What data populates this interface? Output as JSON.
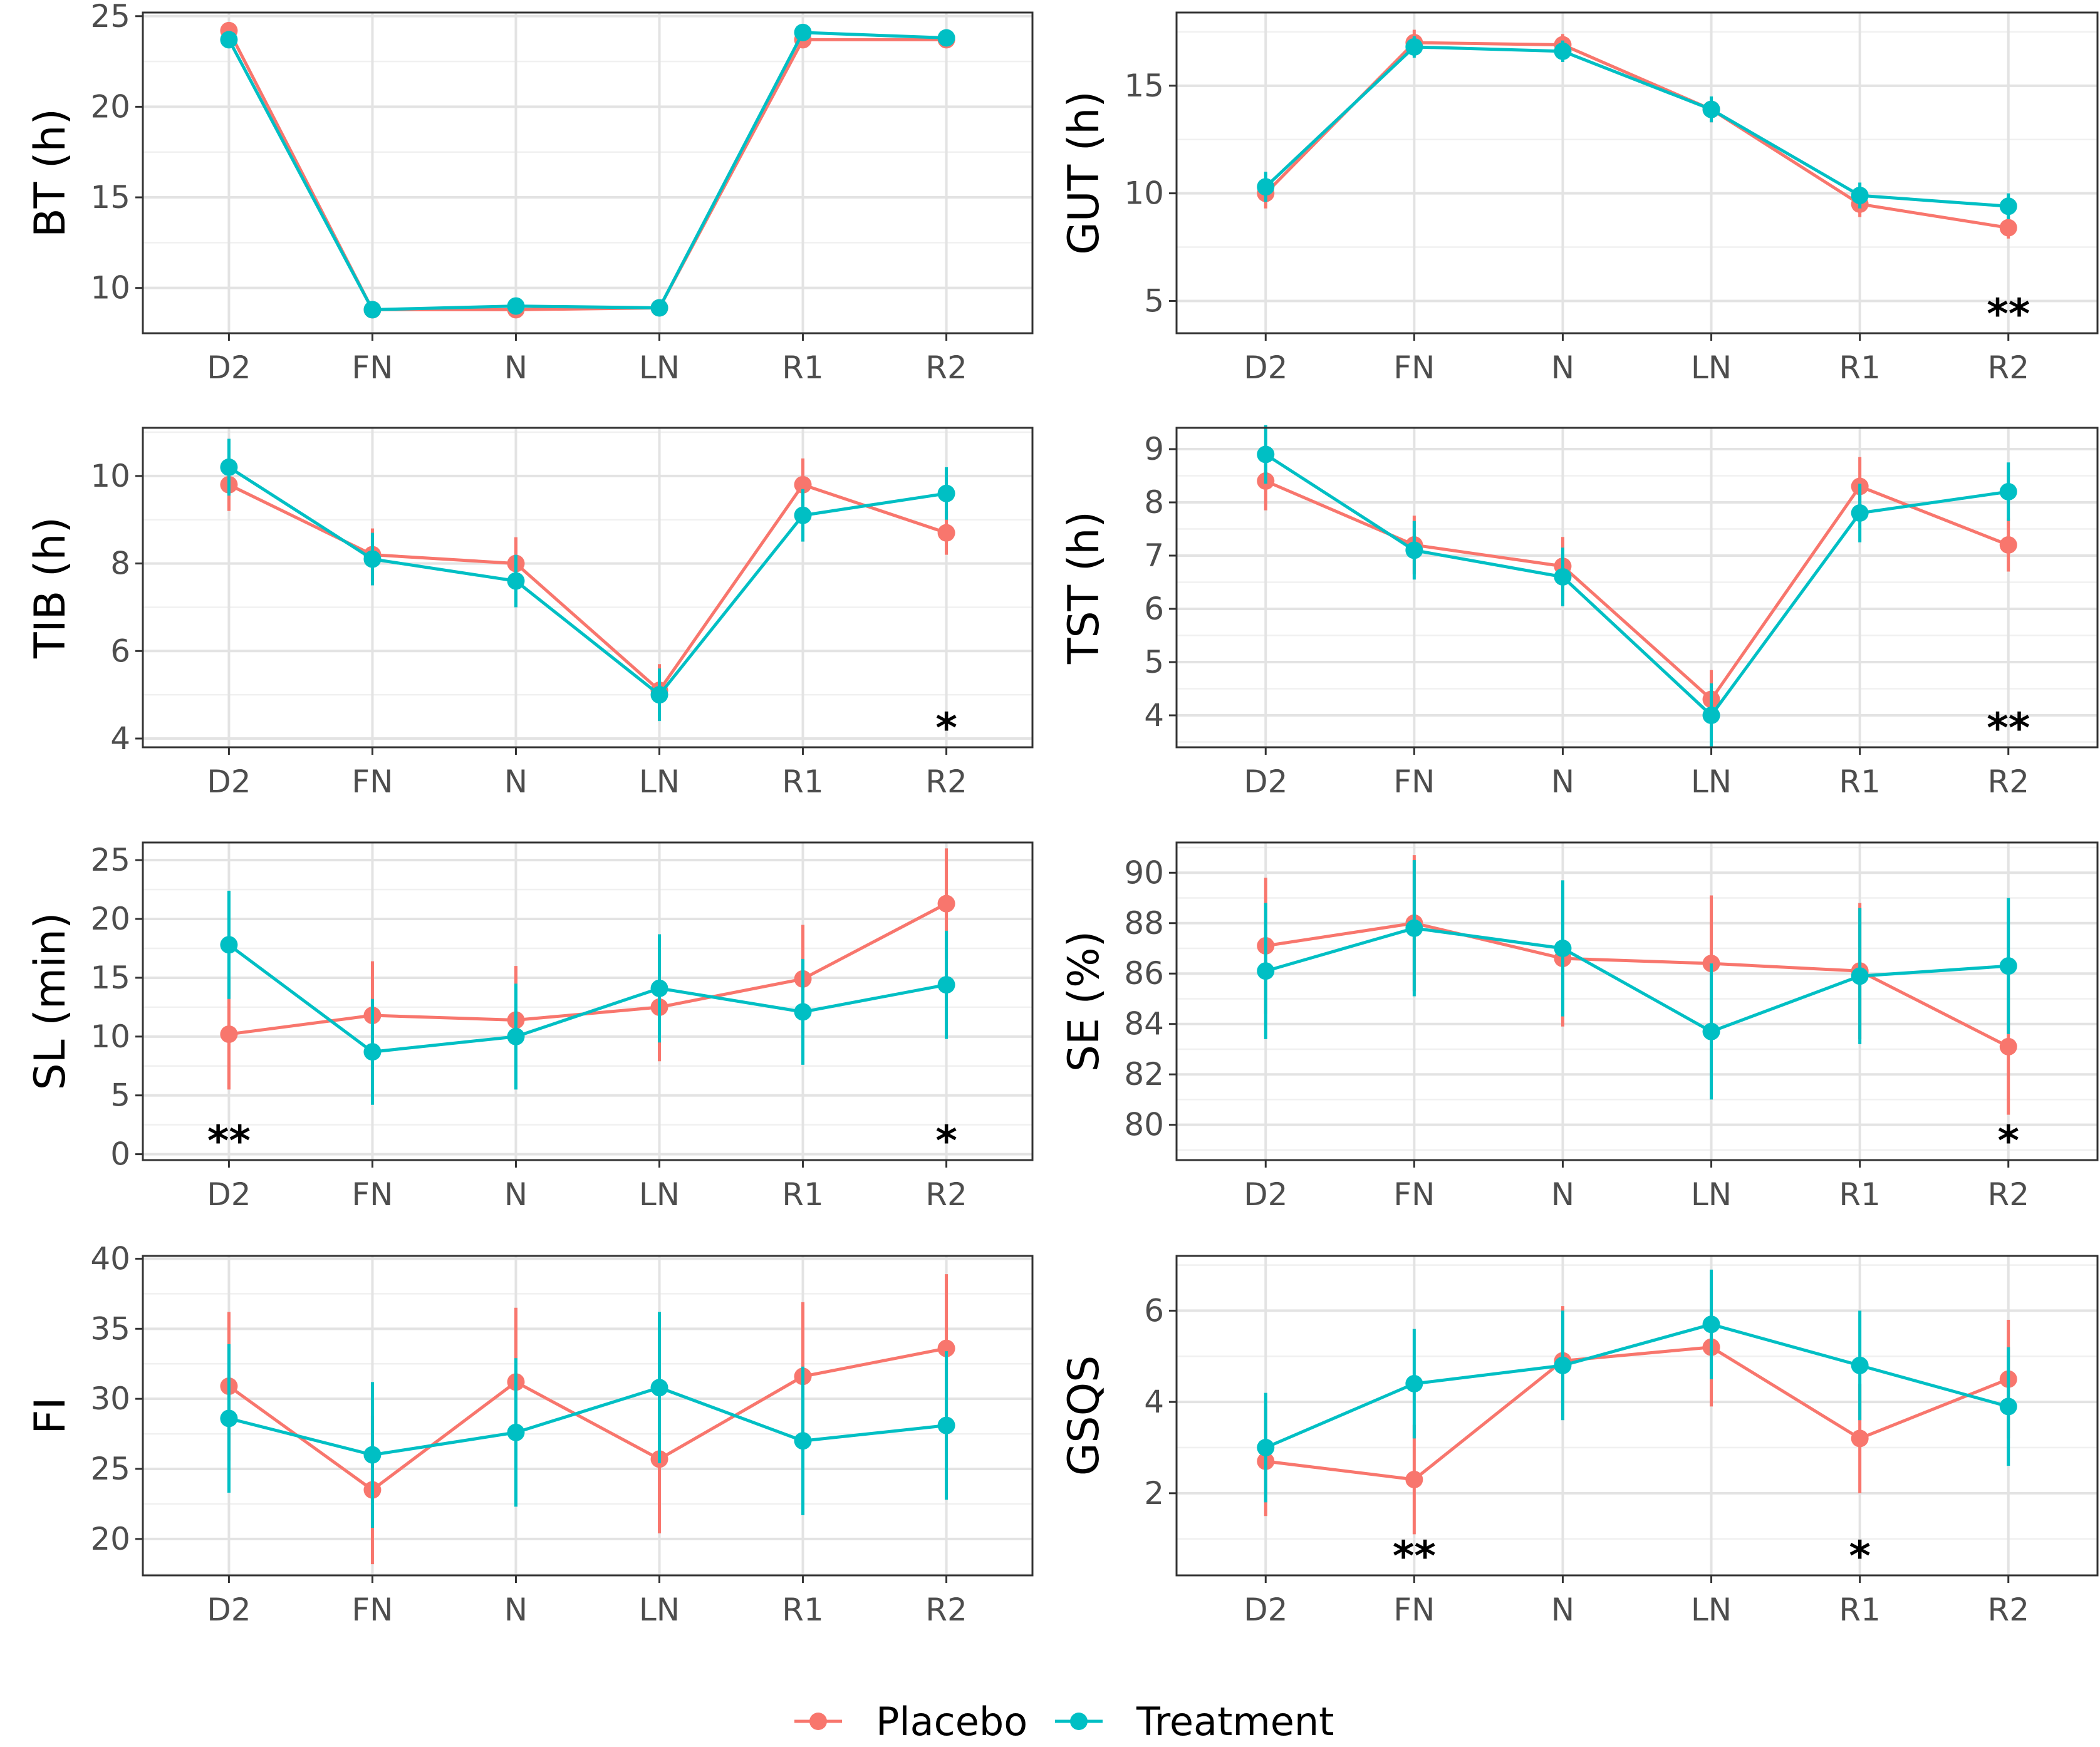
{
  "chart_data": [
    {
      "id": "BT",
      "type": "line",
      "ylabel": "BT (h)",
      "categories": [
        "D2",
        "FN",
        "N",
        "LN",
        "R1",
        "R2"
      ],
      "ylim": [
        7.5,
        25.2
      ],
      "yticks": [
        10,
        15,
        20,
        25
      ],
      "series": [
        {
          "name": "Placebo",
          "values": [
            24.2,
            8.8,
            8.8,
            8.9,
            23.7,
            23.7
          ],
          "errors": [
            0,
            0,
            0,
            0,
            0,
            0
          ]
        },
        {
          "name": "Treatment",
          "values": [
            23.7,
            8.8,
            9.0,
            8.9,
            24.1,
            23.8
          ],
          "errors": [
            0,
            0,
            0,
            0,
            0,
            0
          ]
        }
      ],
      "significance": []
    },
    {
      "id": "GUT",
      "type": "line",
      "ylabel": "GUT (h)",
      "categories": [
        "D2",
        "FN",
        "N",
        "LN",
        "R1",
        "R2"
      ],
      "ylim": [
        3.5,
        18.4
      ],
      "yticks": [
        5,
        10,
        15
      ],
      "series": [
        {
          "name": "Placebo",
          "values": [
            10.0,
            17.0,
            16.9,
            13.9,
            9.5,
            8.4
          ],
          "errors": [
            0.7,
            0.6,
            0.5,
            0.6,
            0.6,
            0.5
          ]
        },
        {
          "name": "Treatment",
          "values": [
            10.3,
            16.8,
            16.6,
            13.9,
            9.9,
            9.4
          ],
          "errors": [
            0.7,
            0.5,
            0.5,
            0.6,
            0.6,
            0.6
          ]
        }
      ],
      "significance": [
        {
          "category": "R2",
          "label": "**"
        }
      ]
    },
    {
      "id": "TIB",
      "type": "line",
      "ylabel": "TIB (h)",
      "categories": [
        "D2",
        "FN",
        "N",
        "LN",
        "R1",
        "R2"
      ],
      "ylim": [
        3.8,
        11.1
      ],
      "yticks": [
        4,
        6,
        8,
        10
      ],
      "series": [
        {
          "name": "Placebo",
          "values": [
            9.8,
            8.2,
            8.0,
            5.1,
            9.8,
            8.7
          ],
          "errors": [
            0.6,
            0.6,
            0.6,
            0.6,
            0.6,
            0.5
          ]
        },
        {
          "name": "Treatment",
          "values": [
            10.2,
            8.1,
            7.6,
            5.0,
            9.1,
            9.6
          ],
          "errors": [
            0.65,
            0.6,
            0.6,
            0.6,
            0.6,
            0.6
          ]
        }
      ],
      "significance": [
        {
          "category": "R2",
          "label": "*"
        }
      ]
    },
    {
      "id": "TST",
      "type": "line",
      "ylabel": "TST (h)",
      "categories": [
        "D2",
        "FN",
        "N",
        "LN",
        "R1",
        "R2"
      ],
      "ylim": [
        3.4,
        9.4
      ],
      "yticks": [
        4,
        5,
        6,
        7,
        8,
        9
      ],
      "series": [
        {
          "name": "Placebo",
          "values": [
            8.4,
            7.2,
            6.8,
            4.3,
            8.3,
            7.2
          ],
          "errors": [
            0.55,
            0.55,
            0.55,
            0.55,
            0.55,
            0.5
          ]
        },
        {
          "name": "Treatment",
          "values": [
            8.9,
            7.1,
            6.6,
            4.0,
            7.8,
            8.2
          ],
          "errors": [
            0.55,
            0.55,
            0.55,
            0.6,
            0.55,
            0.55
          ]
        }
      ],
      "significance": [
        {
          "category": "R2",
          "label": "**"
        }
      ]
    },
    {
      "id": "SL",
      "type": "line",
      "ylabel": "SL (min)",
      "categories": [
        "D2",
        "FN",
        "N",
        "LN",
        "R1",
        "R2"
      ],
      "ylim": [
        -0.5,
        26.5
      ],
      "yticks": [
        0,
        5,
        10,
        15,
        20,
        25
      ],
      "series": [
        {
          "name": "Placebo",
          "values": [
            10.2,
            11.8,
            11.4,
            12.5,
            14.9,
            21.3
          ],
          "errors": [
            4.7,
            4.6,
            4.6,
            4.6,
            4.6,
            4.7
          ]
        },
        {
          "name": "Treatment",
          "values": [
            17.8,
            8.7,
            10.0,
            14.1,
            12.1,
            14.4
          ],
          "errors": [
            4.6,
            4.5,
            4.5,
            4.6,
            4.5,
            4.6
          ]
        }
      ],
      "significance": [
        {
          "category": "D2",
          "label": "**"
        },
        {
          "category": "R2",
          "label": "*"
        }
      ]
    },
    {
      "id": "SE",
      "type": "line",
      "ylabel": "SE (%)",
      "categories": [
        "D2",
        "FN",
        "N",
        "LN",
        "R1",
        "R2"
      ],
      "ylim": [
        78.6,
        91.2
      ],
      "yticks": [
        80,
        82,
        84,
        86,
        88,
        90
      ],
      "series": [
        {
          "name": "Placebo",
          "values": [
            87.1,
            88.0,
            86.6,
            86.4,
            86.1,
            83.1
          ],
          "errors": [
            2.7,
            2.7,
            2.7,
            2.7,
            2.7,
            2.7
          ]
        },
        {
          "name": "Treatment",
          "values": [
            86.1,
            87.8,
            87.0,
            83.7,
            85.9,
            86.3
          ],
          "errors": [
            2.7,
            2.7,
            2.7,
            2.7,
            2.7,
            2.7
          ]
        }
      ],
      "significance": [
        {
          "category": "R2",
          "label": "*"
        }
      ]
    },
    {
      "id": "FI",
      "type": "line",
      "ylabel": "FI",
      "categories": [
        "D2",
        "FN",
        "N",
        "LN",
        "R1",
        "R2"
      ],
      "ylim": [
        17.4,
        40.2
      ],
      "yticks": [
        20,
        25,
        30,
        35,
        40
      ],
      "series": [
        {
          "name": "Placebo",
          "values": [
            30.9,
            23.5,
            31.2,
            25.7,
            31.6,
            33.6
          ],
          "errors": [
            5.3,
            5.3,
            5.3,
            5.3,
            5.3,
            5.3
          ]
        },
        {
          "name": "Treatment",
          "values": [
            28.6,
            26.0,
            27.6,
            30.8,
            27.0,
            28.1
          ],
          "errors": [
            5.3,
            5.2,
            5.3,
            5.4,
            5.3,
            5.3
          ]
        }
      ],
      "significance": []
    },
    {
      "id": "GSQS",
      "type": "line",
      "ylabel": "GSQS",
      "categories": [
        "D2",
        "FN",
        "N",
        "LN",
        "R1",
        "R2"
      ],
      "ylim": [
        0.2,
        7.2
      ],
      "yticks": [
        2,
        4,
        6
      ],
      "series": [
        {
          "name": "Placebo",
          "values": [
            2.7,
            2.3,
            4.9,
            5.2,
            3.2,
            4.5
          ],
          "errors": [
            1.2,
            1.2,
            1.2,
            1.3,
            1.2,
            1.3
          ]
        },
        {
          "name": "Treatment",
          "values": [
            3.0,
            4.4,
            4.8,
            5.7,
            4.8,
            3.9
          ],
          "errors": [
            1.2,
            1.2,
            1.2,
            1.2,
            1.2,
            1.3
          ]
        }
      ],
      "significance": [
        {
          "category": "FN",
          "label": "**"
        },
        {
          "category": "R1",
          "label": "*"
        }
      ]
    }
  ],
  "legend": {
    "placement": "bottom-center",
    "items": [
      {
        "label": "Placebo",
        "color": "#F8766D"
      },
      {
        "label": "Treatment",
        "color": "#00BFC4"
      }
    ]
  },
  "colors": {
    "Placebo": "#F8766D",
    "Treatment": "#00BFC4"
  }
}
